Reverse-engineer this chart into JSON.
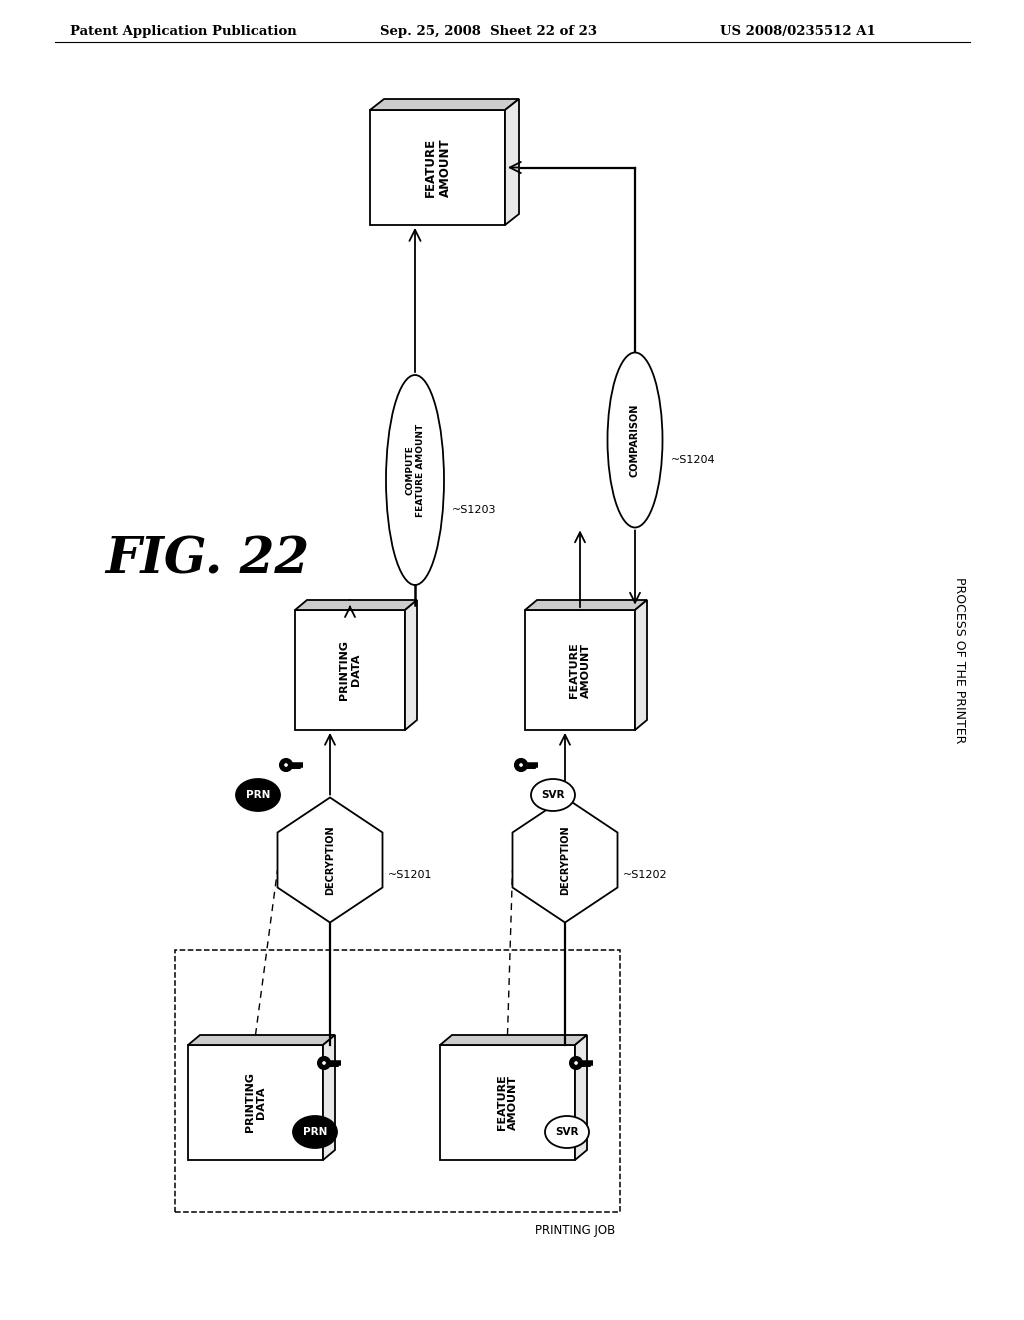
{
  "header_left": "Patent Application Publication",
  "header_center": "Sep. 25, 2008  Sheet 22 of 23",
  "header_right": "US 2008/0235512 A1",
  "fig_label": "FIG. 22",
  "sidebar_text": "PROCESS OF THE PRINTER",
  "bg_color": "#ffffff",
  "lw": 1.3,
  "arrow_scale": 16
}
